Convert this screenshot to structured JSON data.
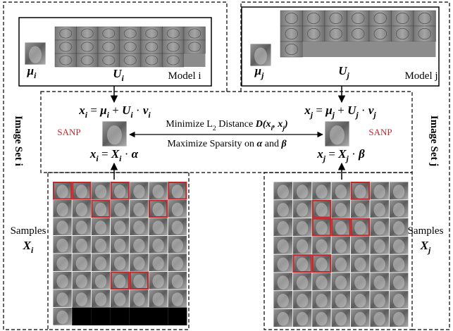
{
  "model_i": {
    "label": "Model i",
    "mean": {
      "t": "μ",
      "sub": "i"
    },
    "basis": {
      "t": "U",
      "sub": "i"
    }
  },
  "model_j": {
    "label": "Model j",
    "mean": {
      "t": "μ",
      "sub": "j"
    },
    "basis": {
      "t": "U",
      "sub": "j"
    }
  },
  "image_set_i": "Image Set i",
  "image_set_j": "Image Set j",
  "sanp_i": "SANP",
  "sanp_j": "SANP",
  "samples_i": {
    "label": "Samples",
    "symbol": {
      "t": "X",
      "sub": "i"
    }
  },
  "samples_j": {
    "label": "Samples",
    "symbol": {
      "t": "X",
      "sub": "j"
    }
  },
  "eq_i_model": [
    {
      "t": "x",
      "sub": "i"
    },
    " = ",
    {
      "t": "μ",
      "sub": "i"
    },
    " + ",
    {
      "t": "U",
      "sub": "i"
    },
    " · ",
    {
      "t": "v",
      "sub": "i"
    }
  ],
  "eq_j_model": [
    {
      "t": "x",
      "sub": "j"
    },
    " = ",
    {
      "t": "μ",
      "sub": "j"
    },
    " + ",
    {
      "t": "U",
      "sub": "j"
    },
    " · ",
    {
      "t": "v",
      "sub": "j"
    }
  ],
  "eq_i_sparse": [
    {
      "t": "x",
      "sub": "i"
    },
    " = ",
    {
      "t": "X",
      "sub": "i"
    },
    " · ",
    {
      "t": "α"
    }
  ],
  "eq_j_sparse": [
    {
      "t": "x",
      "sub": "j"
    },
    " = ",
    {
      "t": "X",
      "sub": "j"
    },
    " · ",
    {
      "t": "β"
    }
  ],
  "minimize": [
    "Minimize L",
    {
      "sub": "2"
    },
    " Distance ",
    {
      "t": "D(x",
      "sub": "i"
    },
    {
      "t": ", x",
      "sub": "j"
    },
    {
      "t": ")"
    }
  ],
  "maximize": [
    "Maximize Sparsity on ",
    {
      "t": "α"
    },
    " and ",
    {
      "t": "β"
    }
  ]
}
